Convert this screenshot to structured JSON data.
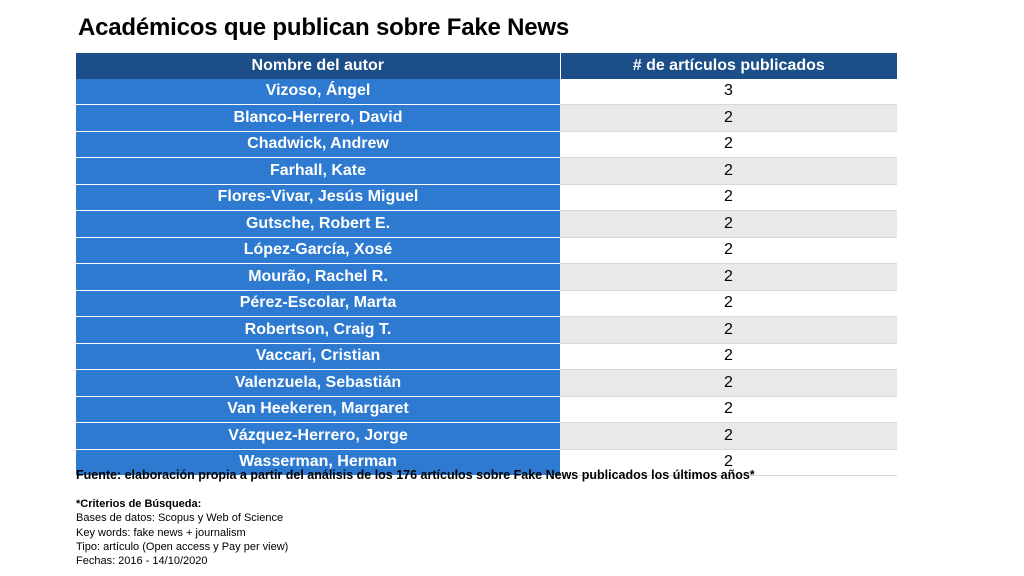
{
  "title": "Académicos que publican sobre Fake News",
  "chart_data": {
    "type": "table",
    "columns": [
      "Nombre del autor",
      "# de artículos publicados"
    ],
    "rows": [
      {
        "name": "Vizoso, Ángel",
        "value": "3"
      },
      {
        "name": "Blanco-Herrero, David",
        "value": "2"
      },
      {
        "name": "Chadwick, Andrew",
        "value": "2"
      },
      {
        "name": "Farhall, Kate",
        "value": "2"
      },
      {
        "name": "Flores-Vivar, Jesús Miguel",
        "value": "2"
      },
      {
        "name": "Gutsche, Robert E.",
        "value": "2"
      },
      {
        "name": "López-García, Xosé",
        "value": "2"
      },
      {
        "name": "Mourão, Rachel R.",
        "value": "2"
      },
      {
        "name": "Pérez-Escolar, Marta",
        "value": "2"
      },
      {
        "name": "Robertson, Craig T.",
        "value": "2"
      },
      {
        "name": "Vaccari, Cristian",
        "value": "2"
      },
      {
        "name": "Valenzuela, Sebastián",
        "value": "2"
      },
      {
        "name": "Van Heekeren, Margaret",
        "value": "2"
      },
      {
        "name": "Vázquez-Herrero, Jorge",
        "value": "2"
      },
      {
        "name": "Wasserman, Herman",
        "value": "2"
      }
    ]
  },
  "source": "Fuente: elaboración propia a partir del análisis de los 176 artículos sobre Fake News publicados los últimos años*",
  "criteria": {
    "title": "*Criterios de Búsqueda:",
    "lines": [
      "Bases de datos: Scopus y Web of Science",
      "Key words: fake news + journalism",
      "Tipo: artículo (Open access y Pay per view)",
      "Fechas: 2016 - 14/10/2020"
    ]
  },
  "colors": {
    "header_bg": "#1c4f88",
    "name_bg": "#2d7ad0",
    "alt_row_bg": "#e9e9e9"
  }
}
